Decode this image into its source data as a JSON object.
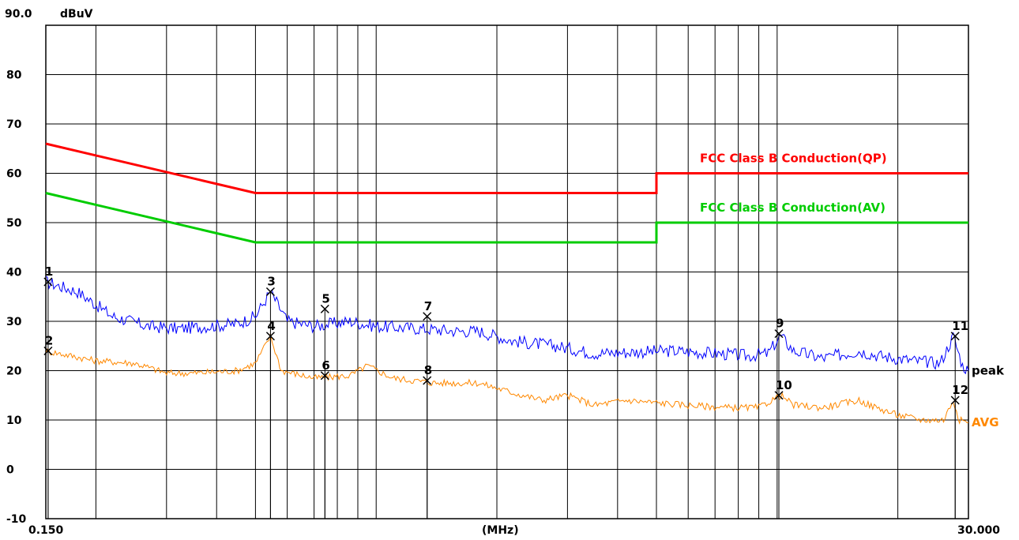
{
  "chart_data": {
    "type": "line",
    "title": "",
    "ylabel": "dBuV",
    "xlabel": "(MHz)",
    "y_top_label": "90.0",
    "x_start_label": "0.150",
    "x_end_label": "30.000",
    "xlim": [
      0.15,
      30
    ],
    "x_scale": "log",
    "ylim": [
      -10,
      90
    ],
    "y_ticks": [
      80,
      70,
      60,
      50,
      40,
      30,
      20,
      10,
      0,
      -10
    ],
    "y_tick_labels": [
      "80",
      "70",
      "60",
      "50",
      "40",
      "30",
      "20",
      "10",
      "0",
      "-10"
    ],
    "x_grid": [
      0.2,
      0.3,
      0.4,
      0.5,
      0.6,
      0.7,
      0.8,
      0.9,
      1,
      2,
      3,
      4,
      5,
      6,
      7,
      8,
      9,
      10,
      20
    ],
    "grid": true,
    "colors": {
      "qp_limit": "#ff0000",
      "av_limit": "#00cc00",
      "peak": "#0000ff",
      "avg": "#ff8800",
      "grid": "#000000"
    },
    "limits": [
      {
        "name": "FCC Class B Conduction(QP)",
        "color": "#ff0000",
        "points": [
          [
            0.15,
            66
          ],
          [
            0.5,
            56
          ],
          [
            5,
            56
          ],
          [
            5,
            60
          ],
          [
            30,
            60
          ]
        ]
      },
      {
        "name": "FCC Class B Conduction(AV)",
        "color": "#00cc00",
        "points": [
          [
            0.15,
            56
          ],
          [
            0.5,
            46
          ],
          [
            5,
            46
          ],
          [
            5,
            50
          ],
          [
            30,
            50
          ]
        ]
      }
    ],
    "series": [
      {
        "name": "peak",
        "color": "#0000ff",
        "points": [
          [
            0.15,
            38
          ],
          [
            0.18,
            36
          ],
          [
            0.22,
            31
          ],
          [
            0.27,
            29
          ],
          [
            0.32,
            28.5
          ],
          [
            0.38,
            29
          ],
          [
            0.45,
            29.5
          ],
          [
            0.5,
            31
          ],
          [
            0.545,
            36
          ],
          [
            0.6,
            30
          ],
          [
            0.7,
            29
          ],
          [
            0.86,
            30
          ],
          [
            1.0,
            29
          ],
          [
            1.3,
            28.5
          ],
          [
            1.6,
            28
          ],
          [
            1.8,
            28
          ],
          [
            2.2,
            26
          ],
          [
            2.8,
            25
          ],
          [
            3.5,
            23.5
          ],
          [
            4.5,
            23.8
          ],
          [
            5.5,
            24
          ],
          [
            7,
            23.5
          ],
          [
            8.5,
            23
          ],
          [
            9.5,
            23.5
          ],
          [
            10.2,
            27
          ],
          [
            11,
            24
          ],
          [
            13,
            22.5
          ],
          [
            16,
            24
          ],
          [
            18,
            23
          ],
          [
            22,
            22
          ],
          [
            25.5,
            21.5
          ],
          [
            27.5,
            27
          ],
          [
            29,
            21
          ],
          [
            30,
            20
          ]
        ]
      },
      {
        "name": "AVG",
        "color": "#ff8800",
        "points": [
          [
            0.15,
            24
          ],
          [
            0.2,
            22
          ],
          [
            0.25,
            21.5
          ],
          [
            0.3,
            19.5
          ],
          [
            0.35,
            19.5
          ],
          [
            0.45,
            20
          ],
          [
            0.5,
            21.5
          ],
          [
            0.545,
            27
          ],
          [
            0.58,
            20
          ],
          [
            0.7,
            18.5
          ],
          [
            0.86,
            19
          ],
          [
            0.95,
            21
          ],
          [
            1.1,
            18.5
          ],
          [
            1.4,
            17.5
          ],
          [
            1.8,
            17.5
          ],
          [
            2.2,
            15.5
          ],
          [
            2.6,
            14
          ],
          [
            3,
            15
          ],
          [
            3.5,
            13
          ],
          [
            4.2,
            14
          ],
          [
            5,
            13.5
          ],
          [
            6,
            13
          ],
          [
            7.5,
            12.5
          ],
          [
            9,
            12.5
          ],
          [
            10.2,
            15
          ],
          [
            11,
            13
          ],
          [
            13,
            12.5
          ],
          [
            16,
            14
          ],
          [
            17,
            13
          ],
          [
            20,
            11
          ],
          [
            23,
            10
          ],
          [
            26,
            10
          ],
          [
            27.5,
            14
          ],
          [
            28.5,
            10
          ],
          [
            30,
            9.5
          ]
        ]
      }
    ],
    "markers": [
      {
        "label": "1",
        "x": 0.152,
        "y": 38
      },
      {
        "label": "2",
        "x": 0.152,
        "y": 24
      },
      {
        "label": "3",
        "x": 0.545,
        "y": 36
      },
      {
        "label": "4",
        "x": 0.545,
        "y": 27
      },
      {
        "label": "5",
        "x": 0.745,
        "y": 32.5
      },
      {
        "label": "6",
        "x": 0.745,
        "y": 19
      },
      {
        "label": "7",
        "x": 1.34,
        "y": 31
      },
      {
        "label": "8",
        "x": 1.34,
        "y": 18
      },
      {
        "label": "9",
        "x": 10.1,
        "y": 27.5
      },
      {
        "label": "10",
        "x": 10.1,
        "y": 15
      },
      {
        "label": "11",
        "x": 27.8,
        "y": 27
      },
      {
        "label": "12",
        "x": 27.8,
        "y": 14
      }
    ],
    "series_end_labels": {
      "peak": "peak",
      "avg": "AVG"
    }
  }
}
